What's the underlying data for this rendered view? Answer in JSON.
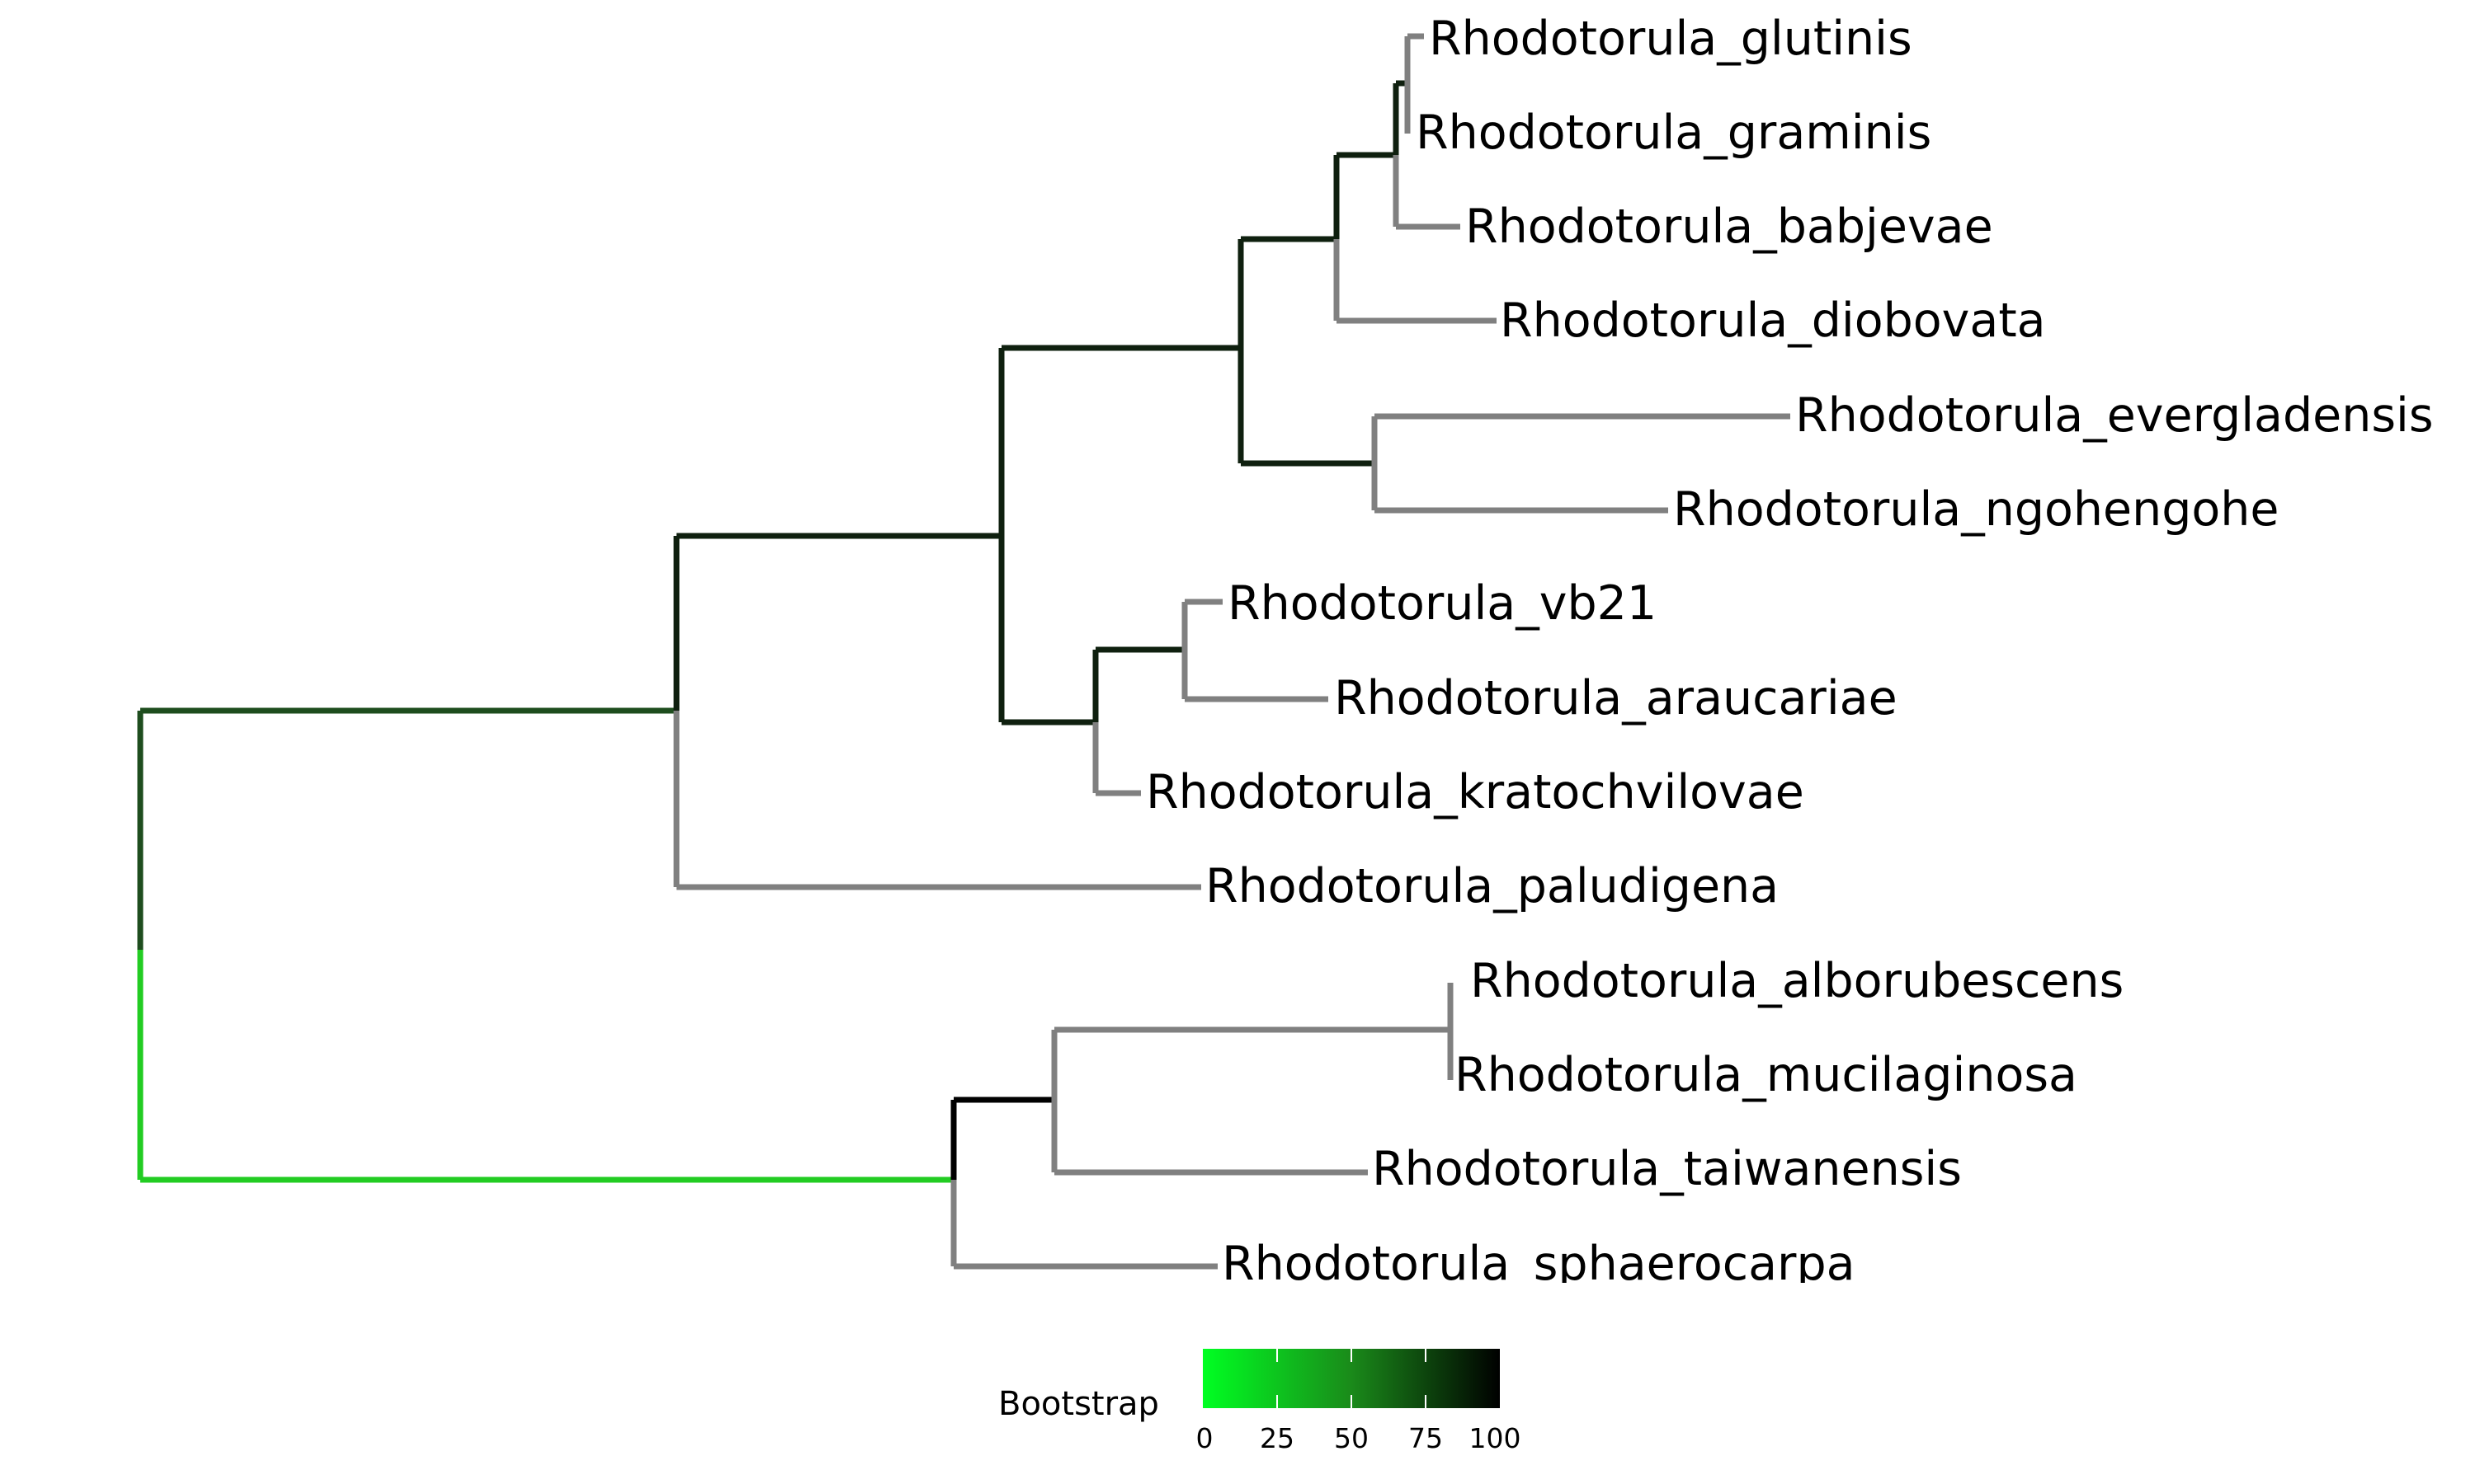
{
  "tree": {
    "leaves": [
      "Rhodotorula_glutinis",
      "Rhodotorula_graminis",
      "Rhodotorula_babjevae",
      "Rhodotorula_diobovata",
      "Rhodotorula_evergladensis",
      "Rhodotorula_ngohengohe",
      "Rhodotorula_vb21",
      "Rhodotorula_araucariae",
      "Rhodotorula_kratochvilovae",
      "Rhodotorula_paludigena",
      "Rhodotorula_alborubescens",
      "Rhodotorula_mucilaginosa",
      "Rhodotorula_taiwanensis",
      "Rhodotorula_sphaerocarpa"
    ],
    "leaf_branch_color": "#808080"
  },
  "legend": {
    "title": "Bootstrap",
    "ticks": [
      "0",
      "25",
      "50",
      "75",
      "100"
    ],
    "range": [
      0,
      100
    ],
    "color_low": "#00ff00",
    "color_high": "#000000"
  }
}
